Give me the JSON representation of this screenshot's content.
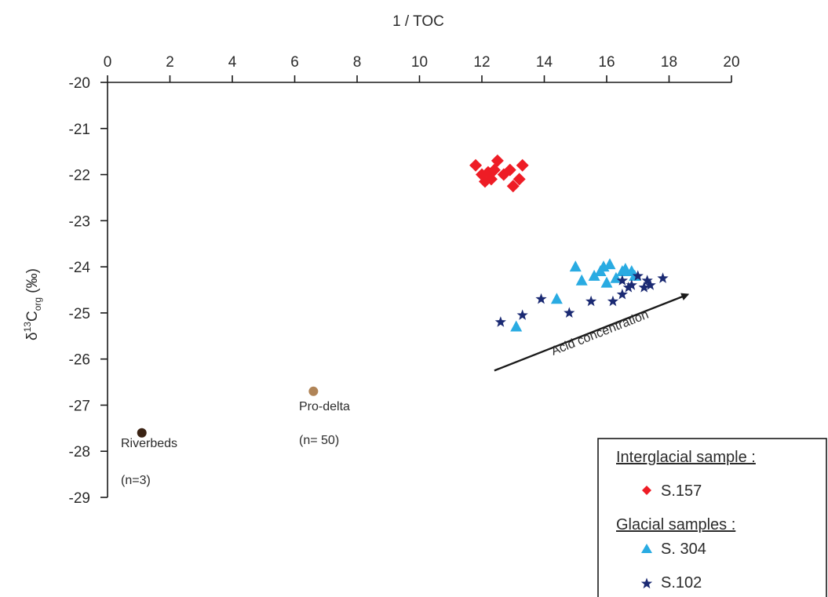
{
  "chart_data": {
    "type": "scatter",
    "xlabel": "1 / TOC",
    "ylabel": {
      "prefix": "δ",
      "sup": "13",
      "main": "C",
      "sub": "org",
      "suffix": " (‰)"
    },
    "xlim": [
      0,
      20
    ],
    "ylim": [
      -29,
      -20
    ],
    "xticks": [
      "0",
      "2",
      "4",
      "6",
      "8",
      "10",
      "12",
      "14",
      "16",
      "18",
      "20"
    ],
    "yticks": [
      "-20",
      "-21",
      "-22",
      "-23",
      "-24",
      "-25",
      "-26",
      "-27",
      "-28",
      "-29"
    ],
    "x_axis_position": "top",
    "grid": false,
    "series": [
      {
        "id": "s157",
        "label": "S.157",
        "marker": "diamond",
        "color": "#ee1c25",
        "points": [
          [
            11.8,
            -21.8
          ],
          [
            12.0,
            -22.0
          ],
          [
            12.1,
            -22.15
          ],
          [
            12.2,
            -21.95
          ],
          [
            12.3,
            -22.1
          ],
          [
            12.4,
            -21.9
          ],
          [
            12.5,
            -21.7
          ],
          [
            12.7,
            -22.0
          ],
          [
            12.9,
            -21.9
          ],
          [
            13.0,
            -22.25
          ],
          [
            13.2,
            -22.1
          ],
          [
            13.3,
            -21.8
          ]
        ]
      },
      {
        "id": "s304",
        "label": "S. 304",
        "marker": "triangle",
        "color": "#29abe2",
        "points": [
          [
            13.1,
            -25.3
          ],
          [
            14.4,
            -24.7
          ],
          [
            15.0,
            -24.0
          ],
          [
            15.2,
            -24.3
          ],
          [
            15.6,
            -24.2
          ],
          [
            15.8,
            -24.1
          ],
          [
            15.9,
            -24.0
          ],
          [
            16.0,
            -24.35
          ],
          [
            16.1,
            -23.95
          ],
          [
            16.3,
            -24.25
          ],
          [
            16.5,
            -24.1
          ],
          [
            16.6,
            -24.05
          ],
          [
            16.8,
            -24.1
          ],
          [
            16.9,
            -24.2
          ]
        ]
      },
      {
        "id": "s102",
        "label": "S.102",
        "marker": "star",
        "color": "#1b2a73",
        "points": [
          [
            12.6,
            -25.2
          ],
          [
            13.3,
            -25.05
          ],
          [
            13.9,
            -24.7
          ],
          [
            14.8,
            -25.0
          ],
          [
            15.5,
            -24.75
          ],
          [
            16.2,
            -24.75
          ],
          [
            16.5,
            -24.6
          ],
          [
            16.5,
            -24.3
          ],
          [
            16.7,
            -24.45
          ],
          [
            16.8,
            -24.4
          ],
          [
            17.0,
            -24.2
          ],
          [
            17.2,
            -24.45
          ],
          [
            17.3,
            -24.3
          ],
          [
            17.4,
            -24.4
          ],
          [
            17.8,
            -24.25
          ]
        ]
      },
      {
        "id": "riverbeds",
        "label": "Riverbeds",
        "marker": "circle",
        "color": "#3b2314",
        "points": [
          [
            1.1,
            -27.6
          ]
        ]
      },
      {
        "id": "prodelta",
        "label": "Pro-delta",
        "marker": "circle",
        "color": "#b08457",
        "points": [
          [
            6.6,
            -26.7
          ]
        ]
      }
    ],
    "annotations": [
      {
        "id": "riverbeds-label",
        "text": "Riverbeds",
        "x": 1.1,
        "y": -27.6
      },
      {
        "id": "riverbeds-n",
        "text": "(n=3)",
        "x": 1.1,
        "y": -27.6
      },
      {
        "id": "prodelta-label",
        "text": "Pro-delta",
        "x": 6.6,
        "y": -26.7
      },
      {
        "id": "prodelta-n",
        "text": "(n= 50)",
        "x": 6.6,
        "y": -26.7
      },
      {
        "id": "arrow-label",
        "text": "Acid concentration"
      }
    ],
    "arrow": {
      "from": [
        12.4,
        -26.25
      ],
      "to": [
        18.6,
        -24.6
      ]
    },
    "legend": {
      "position": "bottom-right",
      "groups": [
        {
          "title": "Interglacial sample :",
          "items": [
            "s157"
          ]
        },
        {
          "title": "Glacial samples :",
          "items": [
            "s304",
            "s102"
          ]
        }
      ]
    }
  }
}
